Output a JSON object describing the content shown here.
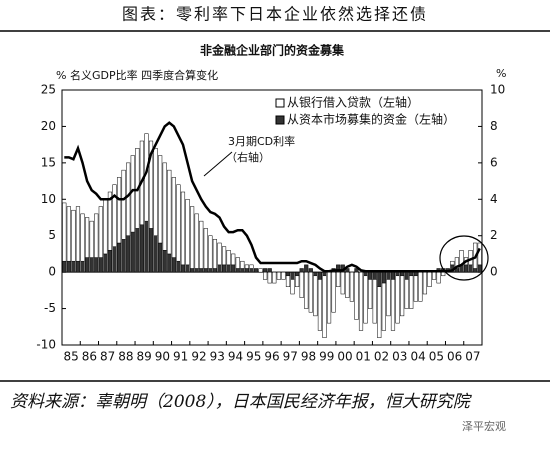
{
  "chart_data": {
    "type": "bar",
    "title": "图表：零利率下日本企业依然选择还债",
    "subtitle": "非金融企业部门的资金募集",
    "y_label": "% 名义GDP比率 四季度合算变化",
    "y2_label": "%",
    "annotation": [
      "3月期CD利率",
      "（右轴）"
    ],
    "source": "资料来源：辜朝明（2008），日本国民经济年报，恒大研究院",
    "watermark": "泽平宏观",
    "categories": [
      "85",
      null,
      null,
      null,
      "86",
      null,
      null,
      null,
      "87",
      null,
      null,
      null,
      "88",
      null,
      null,
      null,
      "89",
      null,
      null,
      null,
      "90",
      null,
      null,
      null,
      "91",
      null,
      null,
      null,
      "92",
      null,
      null,
      null,
      "93",
      null,
      null,
      null,
      "94",
      null,
      null,
      null,
      "95",
      null,
      null,
      null,
      "96",
      null,
      null,
      null,
      "97",
      null,
      null,
      null,
      "98",
      null,
      null,
      null,
      "99",
      null,
      null,
      null,
      "00",
      null,
      null,
      null,
      "01",
      null,
      null,
      null,
      "02",
      null,
      null,
      null,
      "03",
      null,
      null,
      null,
      "04",
      null,
      null,
      null,
      "05",
      null,
      null,
      null,
      "06",
      null,
      null,
      null,
      "07",
      null,
      null,
      null
    ],
    "series": [
      {
        "name": "从银行借入贷款（左轴）",
        "color": "#ffffff",
        "values": [
          8,
          7.5,
          7,
          7.5,
          6.5,
          5.5,
          5,
          6,
          7,
          7.5,
          8,
          8.5,
          9,
          9.5,
          10,
          10.5,
          11,
          11.5,
          12,
          12,
          12,
          12,
          12,
          11.5,
          11,
          10.5,
          10,
          9,
          8.5,
          7.5,
          6.5,
          5.5,
          4.5,
          4,
          3,
          2.5,
          2,
          1.5,
          1.5,
          1,
          0.5,
          0.5,
          0,
          0.5,
          -1,
          -1.5,
          -1.5,
          -1,
          -1,
          -1.5,
          -2,
          -1.5,
          -3.5,
          -5,
          -5.5,
          -5.5,
          -7,
          -8.5,
          -7,
          -5.5,
          -2,
          -3,
          -3.5,
          -4,
          -6.5,
          -8,
          -6.5,
          -4,
          -6,
          -7,
          -6.5,
          -5,
          -7,
          -6.5,
          -5.5,
          -4,
          -4.5,
          -3.5,
          -4,
          -3,
          -2,
          -1,
          -1.5,
          -0.5,
          0,
          0.5,
          1.5,
          2,
          1,
          2,
          3.5,
          3
        ]
      },
      {
        "name": "从资本市场募集的资金（左轴）",
        "color": "#333333",
        "values": [
          1.5,
          1.5,
          1.5,
          1.5,
          1.5,
          2,
          2,
          2,
          2,
          2.5,
          3,
          3.5,
          4,
          4.5,
          5,
          5.5,
          6,
          6.5,
          7,
          6,
          5,
          4,
          3,
          2.5,
          2,
          1.5,
          1,
          1,
          0.5,
          0.5,
          0.5,
          0.5,
          0.5,
          0.5,
          1,
          1,
          1,
          1,
          0.5,
          0.5,
          0.5,
          0.5,
          0.5,
          0,
          0.5,
          0.5,
          0,
          0,
          0,
          -0.5,
          -1,
          -0.5,
          0.5,
          1,
          0.5,
          -0.5,
          -1,
          -0.5,
          0,
          0.5,
          1,
          1,
          0.5,
          0,
          0.5,
          0,
          -0.5,
          -1,
          -1,
          -2,
          -1.5,
          -1,
          -1,
          -0.5,
          -0.5,
          -1,
          -0.5,
          -0.5,
          0,
          0,
          0,
          0,
          0.5,
          0.5,
          0.5,
          1,
          0.5,
          1,
          1,
          1,
          0.5,
          1
        ]
      },
      {
        "name": "3月期CD利率",
        "type": "line",
        "axis": "y2",
        "color": "#000000",
        "values": [
          6.3,
          6.3,
          6.2,
          6.8,
          6,
          5,
          4.5,
          4.3,
          4,
          4,
          4,
          4.2,
          4,
          4,
          4.2,
          4.5,
          4.5,
          5,
          5.5,
          6.5,
          7,
          7.5,
          8,
          8.2,
          8,
          7.5,
          7,
          6,
          5,
          4.5,
          4,
          3.6,
          3.3,
          3.2,
          3,
          2.5,
          2.2,
          2.2,
          2.3,
          2.3,
          2,
          1.5,
          0.8,
          0.5,
          0.5,
          0.5,
          0.5,
          0.5,
          0.5,
          0.5,
          0.5,
          0.5,
          0.6,
          0.6,
          0.5,
          0.4,
          0.2,
          0.05,
          0.05,
          0.1,
          0.1,
          0.1,
          0.3,
          0.4,
          0.3,
          0.1,
          0.05,
          0.05,
          0.05,
          0.05,
          0.05,
          0.05,
          0.05,
          0.05,
          0.05,
          0.05,
          0.05,
          0.05,
          0.05,
          0.05,
          0.05,
          0.05,
          0.05,
          0.05,
          0.05,
          0.1,
          0.3,
          0.4,
          0.6,
          0.7,
          0.8,
          1.3
        ]
      }
    ],
    "ylim": [
      -10,
      25
    ],
    "yticks": [
      -10,
      -5,
      0,
      5,
      10,
      15,
      20,
      25
    ],
    "y2lim": [
      -4,
      10
    ],
    "y2ticks": [
      0,
      2,
      4,
      6,
      8,
      10
    ]
  }
}
